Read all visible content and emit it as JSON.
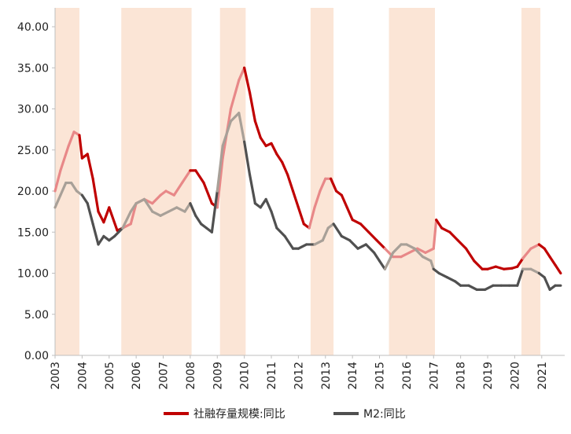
{
  "chart_data": {
    "type": "line",
    "title": "",
    "xlabel": "",
    "ylabel": "",
    "ylim": [
      0,
      40
    ],
    "xlim": [
      2003.0,
      2021.85
    ],
    "y_ticks": [
      "0.00",
      "5.00",
      "10.00",
      "15.00",
      "20.00",
      "25.00",
      "30.00",
      "35.00",
      "40.00"
    ],
    "x_ticks": [
      "2003",
      "2004",
      "2005",
      "2006",
      "2007",
      "2008",
      "2009",
      "2010",
      "2011",
      "2012",
      "2013",
      "2014",
      "2015",
      "2016",
      "2017",
      "2018",
      "2019",
      "2020",
      "2021"
    ],
    "grid": false,
    "legend_position": "bottom",
    "shaded_periods": [
      [
        2003.0,
        2003.9
      ],
      [
        2005.45,
        2008.05
      ],
      [
        2009.1,
        2010.05
      ],
      [
        2012.45,
        2013.3
      ],
      [
        2015.35,
        2017.05
      ],
      [
        2020.25,
        2020.95
      ]
    ],
    "series": [
      {
        "name": "社融存量规模:同比",
        "color": "#c00000",
        "shaded_color": "#e88888",
        "x": [
          2003.0,
          2003.2,
          2003.5,
          2003.7,
          2003.9,
          2004.0,
          2004.2,
          2004.4,
          2004.6,
          2004.8,
          2005.0,
          2005.3,
          2005.5,
          2005.8,
          2006.0,
          2006.3,
          2006.6,
          2006.9,
          2007.1,
          2007.4,
          2007.7,
          2008.0,
          2008.2,
          2008.5,
          2008.8,
          2009.0,
          2009.2,
          2009.5,
          2009.8,
          2010.0,
          2010.2,
          2010.4,
          2010.6,
          2010.8,
          2011.0,
          2011.2,
          2011.4,
          2011.6,
          2011.8,
          2012.0,
          2012.2,
          2012.4,
          2012.6,
          2012.8,
          2013.0,
          2013.2,
          2013.4,
          2013.6,
          2013.8,
          2014.0,
          2014.3,
          2014.6,
          2014.9,
          2015.2,
          2015.5,
          2015.8,
          2016.1,
          2016.4,
          2016.7,
          2017.0,
          2017.1,
          2017.3,
          2017.6,
          2017.9,
          2018.2,
          2018.5,
          2018.8,
          2019.0,
          2019.3,
          2019.6,
          2019.9,
          2020.1,
          2020.3,
          2020.6,
          2020.9,
          2021.1,
          2021.3,
          2021.5,
          2021.7
        ],
        "y": [
          20.0,
          22.5,
          25.5,
          27.2,
          26.8,
          24.0,
          24.5,
          21.5,
          17.5,
          16.2,
          18.0,
          15.2,
          15.5,
          16.0,
          18.5,
          19.0,
          18.5,
          19.5,
          20.0,
          19.5,
          21.0,
          22.5,
          22.5,
          21.0,
          18.5,
          18.0,
          24.0,
          30.0,
          33.5,
          35.0,
          32.0,
          28.5,
          26.5,
          25.5,
          25.8,
          24.5,
          23.5,
          22.0,
          20.0,
          18.0,
          16.0,
          15.5,
          18.0,
          20.0,
          21.5,
          21.5,
          20.0,
          19.5,
          18.0,
          16.5,
          16.0,
          15.0,
          14.0,
          13.0,
          12.0,
          12.0,
          12.5,
          13.0,
          12.5,
          13.0,
          16.5,
          15.5,
          15.0,
          14.0,
          13.0,
          11.5,
          10.5,
          10.5,
          10.8,
          10.5,
          10.6,
          10.8,
          11.8,
          13.0,
          13.5,
          13.0,
          12.0,
          11.0,
          10.0
        ]
      },
      {
        "name": "M2:同比",
        "color": "#505050",
        "shaded_color": "#a8a098",
        "x": [
          2003.0,
          2003.2,
          2003.4,
          2003.6,
          2003.8,
          2004.0,
          2004.2,
          2004.4,
          2004.6,
          2004.8,
          2005.0,
          2005.2,
          2005.5,
          2005.8,
          2006.0,
          2006.3,
          2006.6,
          2006.9,
          2007.2,
          2007.5,
          2007.8,
          2008.0,
          2008.2,
          2008.4,
          2008.6,
          2008.8,
          2009.0,
          2009.2,
          2009.5,
          2009.8,
          2010.0,
          2010.2,
          2010.4,
          2010.6,
          2010.8,
          2011.0,
          2011.2,
          2011.5,
          2011.8,
          2012.0,
          2012.3,
          2012.6,
          2012.9,
          2013.1,
          2013.3,
          2013.6,
          2013.9,
          2014.2,
          2014.5,
          2014.8,
          2015.0,
          2015.2,
          2015.5,
          2015.8,
          2016.0,
          2016.3,
          2016.6,
          2016.9,
          2017.0,
          2017.2,
          2017.5,
          2017.8,
          2018.0,
          2018.3,
          2018.6,
          2018.9,
          2019.2,
          2019.5,
          2019.8,
          2020.1,
          2020.3,
          2020.6,
          2020.9,
          2021.1,
          2021.3,
          2021.5,
          2021.7
        ],
        "y": [
          18.0,
          19.5,
          21.0,
          21.0,
          20.0,
          19.5,
          18.5,
          16.0,
          13.5,
          14.5,
          14.0,
          14.5,
          15.5,
          17.5,
          18.5,
          19.0,
          17.5,
          17.0,
          17.5,
          18.0,
          17.5,
          18.5,
          17.0,
          16.0,
          15.5,
          15.0,
          20.0,
          25.5,
          28.5,
          29.5,
          26.0,
          22.0,
          18.5,
          18.0,
          19.0,
          17.5,
          15.5,
          14.5,
          13.0,
          13.0,
          13.5,
          13.5,
          14.0,
          15.5,
          16.0,
          14.5,
          14.0,
          13.0,
          13.5,
          12.5,
          11.5,
          10.5,
          12.5,
          13.5,
          13.5,
          13.0,
          12.0,
          11.5,
          10.5,
          10.0,
          9.5,
          9.0,
          8.5,
          8.5,
          8.0,
          8.0,
          8.5,
          8.5,
          8.5,
          8.5,
          10.5,
          10.5,
          10.0,
          9.5,
          8.0,
          8.5,
          8.5
        ]
      }
    ]
  }
}
